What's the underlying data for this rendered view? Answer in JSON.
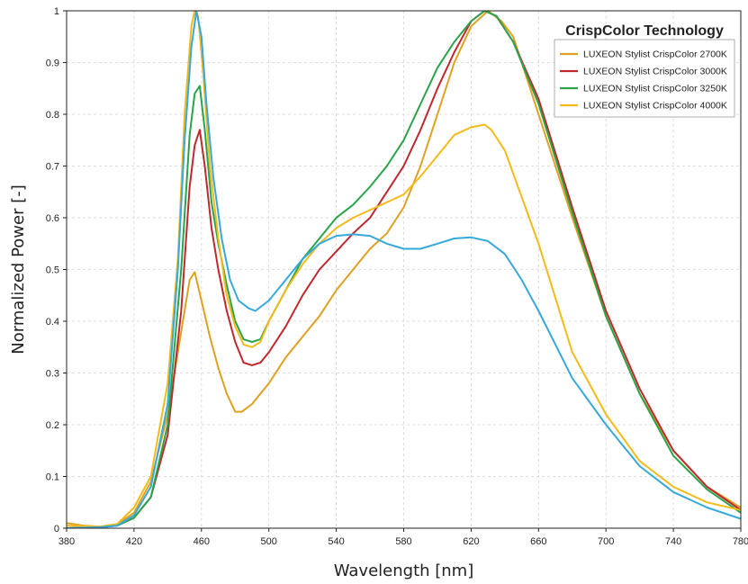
{
  "chart_data": {
    "type": "line",
    "title": "",
    "xlabel": "Wavelength [nm]",
    "ylabel": "Normalized Power [-]",
    "xlim": [
      380,
      780
    ],
    "ylim": [
      0,
      1
    ],
    "x_ticks": [
      380,
      420,
      460,
      500,
      540,
      580,
      620,
      660,
      700,
      740,
      780
    ],
    "y_ticks": [
      0,
      0.1,
      0.2,
      0.3,
      0.4,
      0.5,
      0.6,
      0.7,
      0.8,
      0.9,
      1
    ],
    "y_tick_labels": [
      "0",
      "0.1",
      "0.2",
      "0.3",
      "0.4",
      "0.5",
      "0.6",
      "0.7",
      "0.8",
      "0.9",
      "1"
    ],
    "grid": true,
    "legend": {
      "title": "CrispColor Technology",
      "position": "top-right"
    },
    "series": [
      {
        "name": "LUXEON Stylist CrispColor 2700K",
        "color": "#E0A020",
        "points": [
          [
            380,
            0.01
          ],
          [
            390,
            0.005
          ],
          [
            400,
            0.003
          ],
          [
            410,
            0.008
          ],
          [
            420,
            0.03
          ],
          [
            430,
            0.09
          ],
          [
            440,
            0.22
          ],
          [
            448,
            0.38
          ],
          [
            453,
            0.48
          ],
          [
            456,
            0.495
          ],
          [
            460,
            0.44
          ],
          [
            465,
            0.37
          ],
          [
            470,
            0.31
          ],
          [
            475,
            0.26
          ],
          [
            480,
            0.225
          ],
          [
            484,
            0.225
          ],
          [
            490,
            0.24
          ],
          [
            500,
            0.28
          ],
          [
            510,
            0.33
          ],
          [
            520,
            0.37
          ],
          [
            530,
            0.41
          ],
          [
            540,
            0.46
          ],
          [
            550,
            0.5
          ],
          [
            560,
            0.54
          ],
          [
            570,
            0.57
          ],
          [
            580,
            0.62
          ],
          [
            590,
            0.7
          ],
          [
            600,
            0.8
          ],
          [
            610,
            0.9
          ],
          [
            620,
            0.97
          ],
          [
            630,
            1.0
          ],
          [
            638,
            0.98
          ],
          [
            645,
            0.95
          ],
          [
            650,
            0.9
          ],
          [
            660,
            0.8
          ],
          [
            680,
            0.6
          ],
          [
            700,
            0.41
          ],
          [
            720,
            0.26
          ],
          [
            740,
            0.15
          ],
          [
            760,
            0.08
          ],
          [
            780,
            0.04
          ]
        ]
      },
      {
        "name": "LUXEON Stylist CrispColor 3000K",
        "color": "#C0282E",
        "points": [
          [
            380,
            0.0
          ],
          [
            400,
            0.002
          ],
          [
            410,
            0.005
          ],
          [
            420,
            0.02
          ],
          [
            430,
            0.06
          ],
          [
            440,
            0.18
          ],
          [
            448,
            0.42
          ],
          [
            453,
            0.66
          ],
          [
            456,
            0.74
          ],
          [
            459,
            0.77
          ],
          [
            462,
            0.7
          ],
          [
            466,
            0.58
          ],
          [
            470,
            0.5
          ],
          [
            475,
            0.42
          ],
          [
            480,
            0.36
          ],
          [
            485,
            0.32
          ],
          [
            490,
            0.315
          ],
          [
            495,
            0.32
          ],
          [
            500,
            0.34
          ],
          [
            510,
            0.39
          ],
          [
            520,
            0.45
          ],
          [
            530,
            0.5
          ],
          [
            540,
            0.535
          ],
          [
            550,
            0.57
          ],
          [
            560,
            0.6
          ],
          [
            570,
            0.65
          ],
          [
            580,
            0.7
          ],
          [
            590,
            0.77
          ],
          [
            600,
            0.85
          ],
          [
            610,
            0.92
          ],
          [
            620,
            0.98
          ],
          [
            628,
            1.0
          ],
          [
            635,
            0.99
          ],
          [
            645,
            0.94
          ],
          [
            660,
            0.83
          ],
          [
            680,
            0.62
          ],
          [
            700,
            0.42
          ],
          [
            720,
            0.27
          ],
          [
            740,
            0.15
          ],
          [
            760,
            0.08
          ],
          [
            780,
            0.035
          ]
        ]
      },
      {
        "name": "LUXEON Stylist CrispColor 3250K",
        "color": "#2AA44A",
        "points": [
          [
            380,
            0.0
          ],
          [
            400,
            0.002
          ],
          [
            410,
            0.005
          ],
          [
            420,
            0.02
          ],
          [
            430,
            0.06
          ],
          [
            440,
            0.2
          ],
          [
            448,
            0.5
          ],
          [
            453,
            0.76
          ],
          [
            456,
            0.84
          ],
          [
            459,
            0.855
          ],
          [
            462,
            0.77
          ],
          [
            466,
            0.63
          ],
          [
            470,
            0.55
          ],
          [
            475,
            0.47
          ],
          [
            480,
            0.4
          ],
          [
            485,
            0.365
          ],
          [
            490,
            0.36
          ],
          [
            495,
            0.365
          ],
          [
            500,
            0.4
          ],
          [
            510,
            0.46
          ],
          [
            520,
            0.52
          ],
          [
            530,
            0.56
          ],
          [
            540,
            0.6
          ],
          [
            550,
            0.625
          ],
          [
            560,
            0.66
          ],
          [
            570,
            0.7
          ],
          [
            580,
            0.75
          ],
          [
            590,
            0.82
          ],
          [
            600,
            0.89
          ],
          [
            610,
            0.94
          ],
          [
            620,
            0.98
          ],
          [
            628,
            1.0
          ],
          [
            635,
            0.99
          ],
          [
            645,
            0.94
          ],
          [
            660,
            0.82
          ],
          [
            680,
            0.61
          ],
          [
            700,
            0.41
          ],
          [
            720,
            0.26
          ],
          [
            740,
            0.14
          ],
          [
            760,
            0.075
          ],
          [
            780,
            0.03
          ]
        ]
      },
      {
        "name": "LUXEON Stylist CrispColor 4000K",
        "color": "#F5BA1A",
        "points": [
          [
            380,
            0.005
          ],
          [
            400,
            0.003
          ],
          [
            410,
            0.008
          ],
          [
            420,
            0.04
          ],
          [
            430,
            0.1
          ],
          [
            440,
            0.28
          ],
          [
            446,
            0.52
          ],
          [
            450,
            0.8
          ],
          [
            454,
            0.97
          ],
          [
            456,
            1.0
          ],
          [
            458,
            0.99
          ],
          [
            461,
            0.88
          ],
          [
            465,
            0.7
          ],
          [
            470,
            0.56
          ],
          [
            475,
            0.45
          ],
          [
            480,
            0.39
          ],
          [
            485,
            0.355
          ],
          [
            490,
            0.35
          ],
          [
            495,
            0.36
          ],
          [
            500,
            0.4
          ],
          [
            510,
            0.46
          ],
          [
            520,
            0.51
          ],
          [
            530,
            0.55
          ],
          [
            540,
            0.58
          ],
          [
            550,
            0.6
          ],
          [
            560,
            0.615
          ],
          [
            570,
            0.63
          ],
          [
            580,
            0.645
          ],
          [
            590,
            0.68
          ],
          [
            600,
            0.72
          ],
          [
            610,
            0.76
          ],
          [
            620,
            0.775
          ],
          [
            628,
            0.78
          ],
          [
            632,
            0.77
          ],
          [
            640,
            0.73
          ],
          [
            650,
            0.64
          ],
          [
            660,
            0.55
          ],
          [
            680,
            0.34
          ],
          [
            700,
            0.22
          ],
          [
            720,
            0.13
          ],
          [
            740,
            0.08
          ],
          [
            760,
            0.05
          ],
          [
            780,
            0.035
          ]
        ]
      },
      {
        "name": "",
        "color": "#36A9DC",
        "points": [
          [
            380,
            0.0
          ],
          [
            400,
            0.002
          ],
          [
            410,
            0.005
          ],
          [
            420,
            0.025
          ],
          [
            430,
            0.08
          ],
          [
            440,
            0.24
          ],
          [
            446,
            0.5
          ],
          [
            450,
            0.75
          ],
          [
            454,
            0.93
          ],
          [
            457,
            1.0
          ],
          [
            460,
            0.95
          ],
          [
            463,
            0.82
          ],
          [
            467,
            0.68
          ],
          [
            472,
            0.56
          ],
          [
            477,
            0.48
          ],
          [
            482,
            0.44
          ],
          [
            488,
            0.425
          ],
          [
            492,
            0.42
          ],
          [
            500,
            0.44
          ],
          [
            510,
            0.48
          ],
          [
            520,
            0.52
          ],
          [
            530,
            0.55
          ],
          [
            540,
            0.565
          ],
          [
            550,
            0.568
          ],
          [
            560,
            0.565
          ],
          [
            570,
            0.55
          ],
          [
            580,
            0.54
          ],
          [
            590,
            0.54
          ],
          [
            600,
            0.55
          ],
          [
            610,
            0.56
          ],
          [
            620,
            0.562
          ],
          [
            630,
            0.555
          ],
          [
            640,
            0.53
          ],
          [
            650,
            0.48
          ],
          [
            660,
            0.42
          ],
          [
            680,
            0.29
          ],
          [
            700,
            0.2
          ],
          [
            720,
            0.12
          ],
          [
            740,
            0.07
          ],
          [
            760,
            0.04
          ],
          [
            780,
            0.018
          ]
        ]
      }
    ]
  }
}
